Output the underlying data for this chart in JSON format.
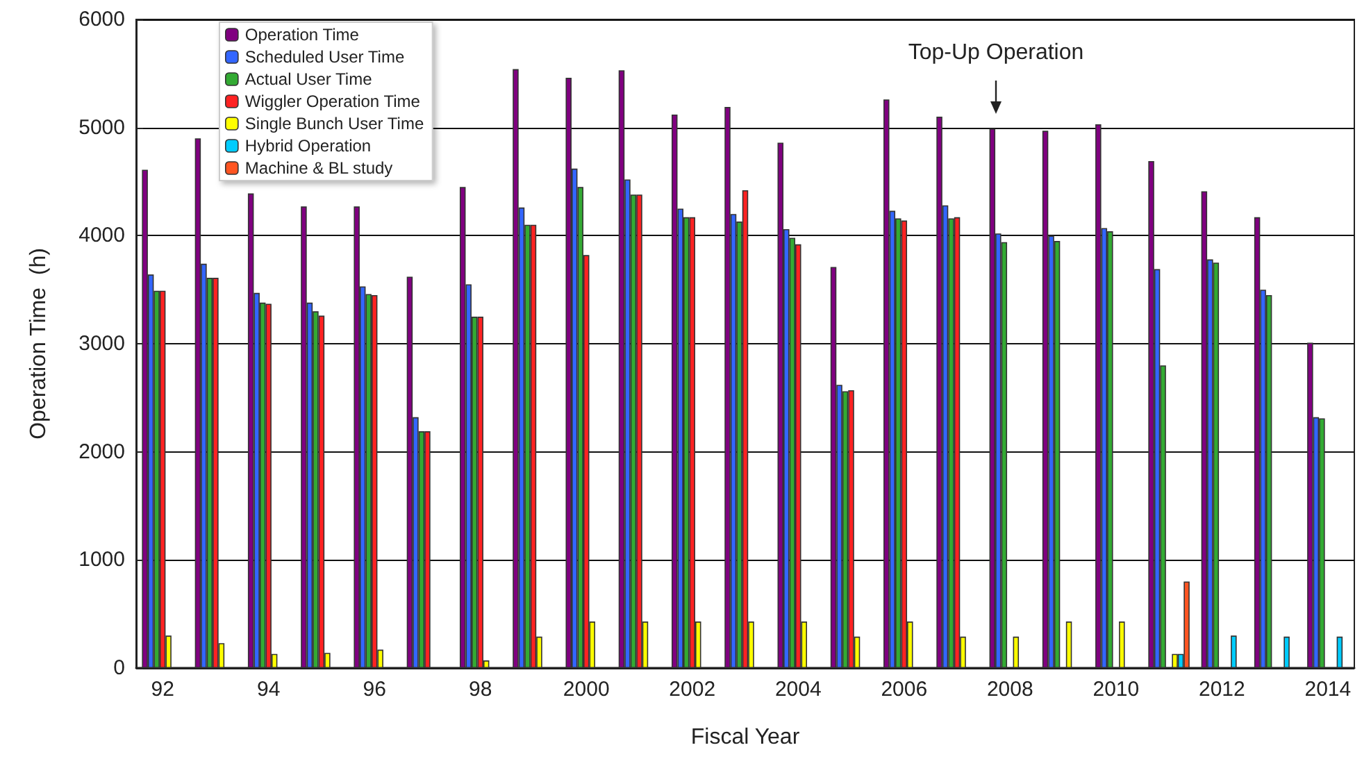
{
  "chart_data": {
    "type": "bar",
    "xlabel": "Fiscal Year",
    "ylabel": "Operation Time  (h)",
    "categories": [
      "92",
      null,
      "94",
      null,
      "96",
      null,
      "98",
      null,
      "2000",
      null,
      "2002",
      null,
      "2004",
      null,
      "2006",
      null,
      "2008",
      null,
      "2010",
      null,
      "2012",
      null,
      "2014"
    ],
    "series": [
      {
        "name": "Operation Time",
        "color": "#800080",
        "values": [
          4610,
          4900,
          4390,
          4270,
          4270,
          3620,
          4450,
          5540,
          5460,
          5530,
          5120,
          5190,
          4860,
          3710,
          5260,
          5100,
          4990,
          4970,
          5030,
          4690,
          4410,
          4170,
          3010
        ]
      },
      {
        "name": "Scheduled User Time",
        "color": "#3366ff",
        "values": [
          3640,
          3740,
          3470,
          3380,
          3530,
          2320,
          3550,
          4260,
          4620,
          4520,
          4250,
          4200,
          4060,
          2620,
          4230,
          4280,
          4020,
          4000,
          4070,
          3690,
          3780,
          3500,
          2320
        ]
      },
      {
        "name": "Actual User Time",
        "color": "#33aa33",
        "values": [
          3490,
          3610,
          3380,
          3300,
          3460,
          2190,
          3250,
          4100,
          4450,
          4380,
          4170,
          4130,
          3980,
          2560,
          4160,
          4160,
          3940,
          3950,
          4040,
          2800,
          3750,
          3450,
          2310
        ]
      },
      {
        "name": "Wiggler Operation Time",
        "color": "#ff2222",
        "values": [
          3490,
          3610,
          3370,
          3260,
          3450,
          2190,
          3250,
          4100,
          3820,
          4380,
          4170,
          4420,
          3920,
          2570,
          4140,
          4170,
          null,
          null,
          null,
          null,
          null,
          null,
          null
        ]
      },
      {
        "name": "Single Bunch User Time",
        "color": "#ffff00",
        "values": [
          300,
          230,
          130,
          140,
          170,
          null,
          70,
          290,
          430,
          430,
          430,
          430,
          430,
          290,
          430,
          290,
          290,
          430,
          430,
          130,
          null,
          null,
          null
        ]
      },
      {
        "name": "Hybrid Operation",
        "color": "#00ccff",
        "values": [
          null,
          null,
          null,
          null,
          null,
          null,
          null,
          null,
          null,
          null,
          null,
          null,
          null,
          null,
          null,
          null,
          null,
          null,
          null,
          130,
          300,
          290,
          290
        ]
      },
      {
        "name": "Machine & BL study",
        "color": "#ff5522",
        "values": [
          null,
          null,
          null,
          null,
          null,
          null,
          null,
          null,
          null,
          null,
          null,
          null,
          null,
          null,
          null,
          null,
          null,
          null,
          null,
          800,
          null,
          null,
          null
        ]
      }
    ],
    "ylim": [
      0,
      6000
    ],
    "yticks": [
      0,
      1000,
      2000,
      3000,
      4000,
      5000,
      6000
    ],
    "grid": "y",
    "legend": "top left",
    "annotations": [
      "Top-Up Operation"
    ]
  }
}
